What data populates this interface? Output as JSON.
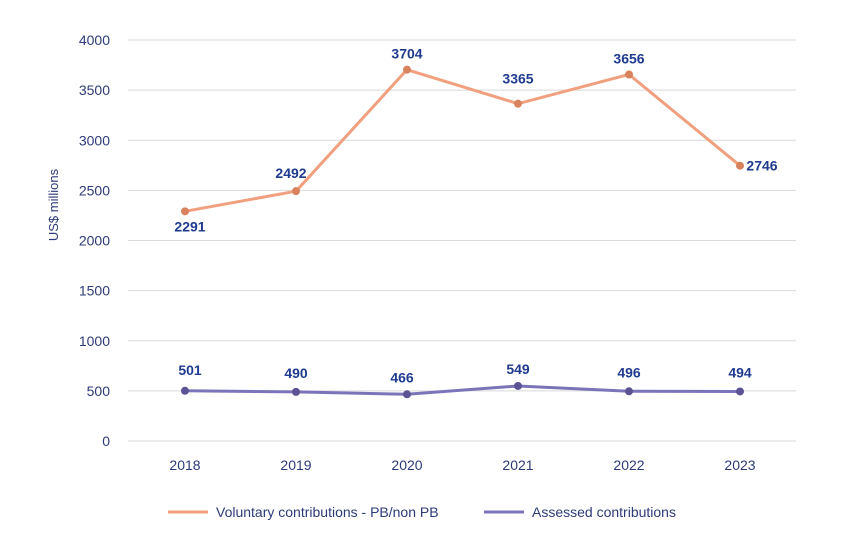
{
  "chart_data": {
    "type": "line",
    "title": "",
    "xlabel": "",
    "ylabel": "US$ millions",
    "x": [
      "2018",
      "2019",
      "2020",
      "2021",
      "2022",
      "2023"
    ],
    "ylim": [
      0,
      4000
    ],
    "yticks": [
      "0",
      "500",
      "1000",
      "1500",
      "2000",
      "2500",
      "3000",
      "3500",
      "4000"
    ],
    "grid": true,
    "legend_position": "bottom",
    "series": [
      {
        "name": "Voluntary contributions - PB/non PB",
        "values": [
          2291,
          2492,
          3704,
          3365,
          3656,
          2746
        ],
        "labels": [
          "2291",
          "2492",
          "3704",
          "3365",
          "3656",
          "2746"
        ],
        "color": "#f0a07e",
        "marker_color": "#d9825e"
      },
      {
        "name": "Assessed contributions",
        "values": [
          501,
          490,
          466,
          549,
          496,
          494
        ],
        "labels": [
          "501",
          "490",
          "466",
          "549",
          "496",
          "494"
        ],
        "color": "#7b74b8",
        "marker_color": "#5b5393"
      }
    ]
  }
}
